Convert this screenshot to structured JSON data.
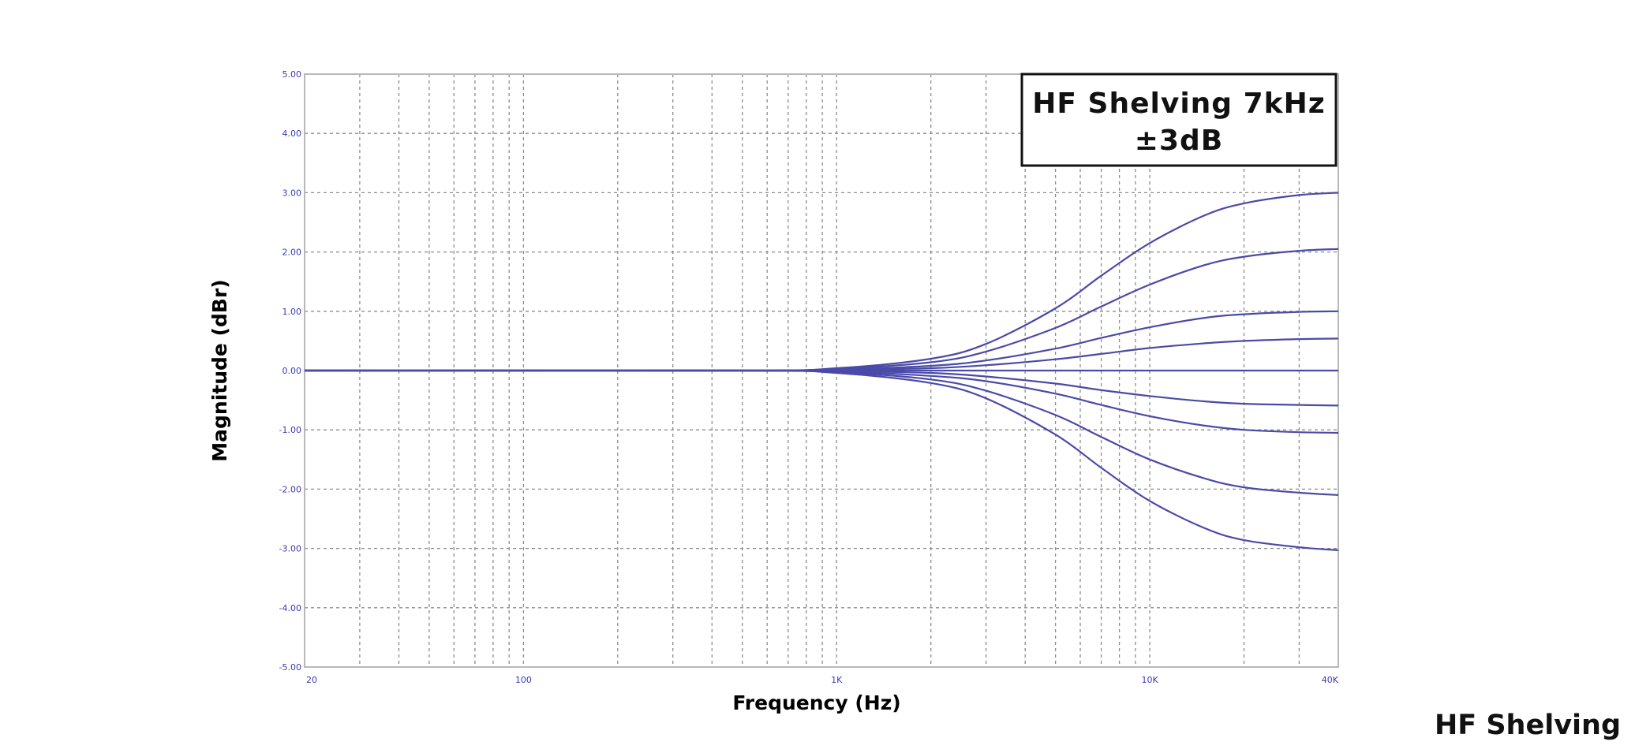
{
  "footer_title": "HF Shelving",
  "chart_data": {
    "type": "line",
    "annotation_box": {
      "line1": "HF Shelving 7kHz",
      "line2": "±3dB"
    },
    "xlabel": "Frequency (Hz)",
    "ylabel": "Magnitude (dBr)",
    "x_scale": "log",
    "xlim": [
      20,
      40000
    ],
    "ylim": [
      -5,
      5
    ],
    "grid": true,
    "x_tick_labels": [
      {
        "value": 20,
        "label": "20"
      },
      {
        "value": 100,
        "label": "100"
      },
      {
        "value": 1000,
        "label": "1K"
      },
      {
        "value": 10000,
        "label": "10K"
      },
      {
        "value": 40000,
        "label": "40K"
      }
    ],
    "y_tick_labels": [
      {
        "value": 5,
        "label": "5.00"
      },
      {
        "value": 4,
        "label": "4.00"
      },
      {
        "value": 3,
        "label": "3.00"
      },
      {
        "value": 2,
        "label": "2.00"
      },
      {
        "value": 1,
        "label": "1.00"
      },
      {
        "value": 0,
        "label": "0.00"
      },
      {
        "value": -1,
        "label": "-1.00"
      },
      {
        "value": -2,
        "label": "-2.00"
      },
      {
        "value": -3,
        "label": "-3.00"
      },
      {
        "value": -4,
        "label": "-4.00"
      },
      {
        "value": -5,
        "label": "-5.00"
      }
    ],
    "series": [
      {
        "x": [
          20,
          500,
          1000,
          2000,
          3000,
          5000,
          7000,
          10000,
          15000,
          20000,
          30000,
          40000
        ],
        "y": [
          0,
          0,
          0.04,
          0.2,
          0.45,
          1.05,
          1.6,
          2.15,
          2.62,
          2.82,
          2.96,
          3.0
        ]
      },
      {
        "x": [
          20,
          500,
          1000,
          2000,
          3000,
          5000,
          7000,
          10000,
          15000,
          20000,
          30000,
          40000
        ],
        "y": [
          0,
          0,
          0.03,
          0.14,
          0.32,
          0.72,
          1.08,
          1.45,
          1.78,
          1.92,
          2.02,
          2.05
        ]
      },
      {
        "x": [
          20,
          500,
          1000,
          2000,
          3000,
          5000,
          7000,
          10000,
          15000,
          20000,
          30000,
          40000
        ],
        "y": [
          0,
          0,
          0.02,
          0.08,
          0.17,
          0.37,
          0.55,
          0.73,
          0.89,
          0.95,
          0.99,
          1.0
        ]
      },
      {
        "x": [
          20,
          500,
          1000,
          2000,
          3000,
          5000,
          7000,
          10000,
          15000,
          20000,
          30000,
          40000
        ],
        "y": [
          0,
          0,
          0.01,
          0.04,
          0.09,
          0.19,
          0.28,
          0.38,
          0.46,
          0.5,
          0.53,
          0.54
        ]
      },
      {
        "x": [
          20,
          500,
          1000,
          2000,
          3000,
          5000,
          7000,
          10000,
          15000,
          20000,
          30000,
          40000
        ],
        "y": [
          0,
          0,
          0,
          0,
          0,
          0,
          0,
          0,
          0,
          0,
          0,
          0
        ]
      },
      {
        "x": [
          20,
          500,
          1000,
          2000,
          3000,
          5000,
          7000,
          10000,
          15000,
          20000,
          30000,
          40000
        ],
        "y": [
          0,
          0,
          -0.01,
          -0.04,
          -0.1,
          -0.22,
          -0.33,
          -0.43,
          -0.52,
          -0.56,
          -0.58,
          -0.59
        ]
      },
      {
        "x": [
          20,
          500,
          1000,
          2000,
          3000,
          5000,
          7000,
          10000,
          15000,
          20000,
          30000,
          40000
        ],
        "y": [
          0,
          0,
          -0.02,
          -0.09,
          -0.18,
          -0.39,
          -0.58,
          -0.77,
          -0.93,
          -1.0,
          -1.04,
          -1.05
        ]
      },
      {
        "x": [
          20,
          500,
          1000,
          2000,
          3000,
          5000,
          7000,
          10000,
          15000,
          20000,
          30000,
          40000
        ],
        "y": [
          0,
          0,
          -0.03,
          -0.15,
          -0.34,
          -0.75,
          -1.12,
          -1.5,
          -1.82,
          -1.97,
          -2.06,
          -2.1
        ]
      },
      {
        "x": [
          20,
          500,
          1000,
          2000,
          3000,
          5000,
          7000,
          10000,
          15000,
          20000,
          30000,
          40000
        ],
        "y": [
          0,
          0,
          -0.04,
          -0.21,
          -0.47,
          -1.08,
          -1.64,
          -2.2,
          -2.66,
          -2.86,
          -2.98,
          -3.03
        ]
      }
    ],
    "colors": {
      "series": "#4a4aa8",
      "tick": "#3a3ab0",
      "grid": "#8c8c8c",
      "frame": "#b8b8b8"
    }
  }
}
